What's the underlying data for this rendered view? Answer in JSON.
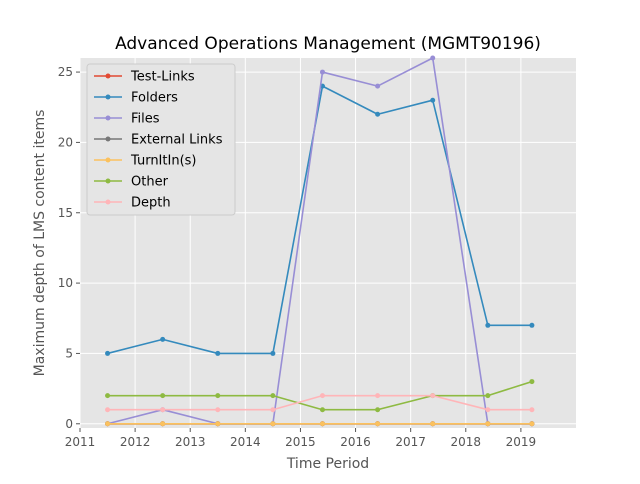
{
  "chart_data": {
    "type": "line",
    "title": "Advanced Operations Management (MGMT90196)",
    "xlabel": "Time Period",
    "ylabel": "Maximum depth of LMS content items",
    "xlim": [
      2011.0,
      2020.0
    ],
    "ylim": [
      -0.3,
      26.0
    ],
    "x_ticks": [
      2011,
      2012,
      2013,
      2014,
      2015,
      2016,
      2017,
      2018,
      2019
    ],
    "y_ticks": [
      0,
      5,
      10,
      15,
      20,
      25
    ],
    "grid": true,
    "legend_position": "upper-left",
    "x": [
      2011.5,
      2012.5,
      2013.5,
      2014.5,
      2015.4,
      2016.4,
      2017.4,
      2018.4,
      2019.2
    ],
    "series": [
      {
        "name": "Test-Links",
        "color": "#e24a33",
        "values": [
          0,
          0,
          0,
          0,
          0,
          0,
          0,
          0,
          0
        ]
      },
      {
        "name": "Folders",
        "color": "#348abd",
        "values": [
          5,
          6,
          5,
          5,
          24,
          22,
          23,
          7,
          7
        ]
      },
      {
        "name": "Files",
        "color": "#988ed5",
        "values": [
          0,
          1,
          0,
          0,
          25,
          24,
          26,
          0,
          0
        ]
      },
      {
        "name": "External Links",
        "color": "#777777",
        "values": [
          0,
          0,
          0,
          0,
          0,
          0,
          0,
          0,
          0
        ]
      },
      {
        "name": "TurnItIn(s)",
        "color": "#fbc15e",
        "values": [
          0,
          0,
          0,
          0,
          0,
          0,
          0,
          0,
          0
        ]
      },
      {
        "name": "Other",
        "color": "#8eba42",
        "values": [
          2,
          2,
          2,
          2,
          1,
          1,
          2,
          2,
          3
        ]
      },
      {
        "name": "Depth",
        "color": "#ffb5b8",
        "values": [
          1,
          1,
          1,
          1,
          2,
          2,
          2,
          1,
          1
        ]
      }
    ]
  }
}
